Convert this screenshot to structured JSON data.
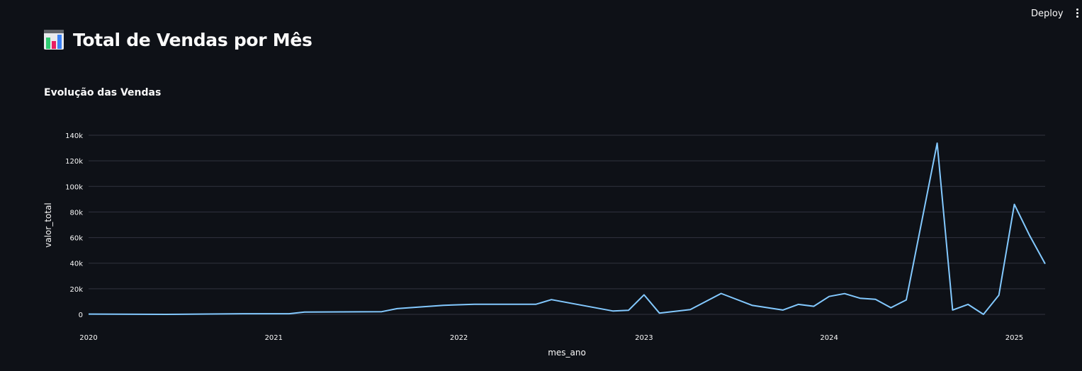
{
  "header": {
    "deploy_label": "Deploy"
  },
  "page": {
    "title": "Total de Vendas por Mês",
    "title_icon": "bar-chart-icon",
    "subheader": "Evolução das Vendas"
  },
  "colors": {
    "background": "#0e1117",
    "line": "#83c9ff",
    "grid": "#31333f",
    "text": "#fafafa"
  },
  "chart_data": {
    "type": "line",
    "title": "",
    "xlabel": "mes_ano",
    "ylabel": "valor_total",
    "xlim": [
      "2020-01",
      "2025-03"
    ],
    "ylim": [
      0,
      140000
    ],
    "x_ticks": [
      "2020",
      "2021",
      "2022",
      "2023",
      "2024",
      "2025"
    ],
    "y_ticks": [
      {
        "value": 0,
        "label": "0"
      },
      {
        "value": 20000,
        "label": "20k"
      },
      {
        "value": 40000,
        "label": "40k"
      },
      {
        "value": 60000,
        "label": "60k"
      },
      {
        "value": 80000,
        "label": "80k"
      },
      {
        "value": 100000,
        "label": "100k"
      },
      {
        "value": 120000,
        "label": "120k"
      },
      {
        "value": 140000,
        "label": "140k"
      }
    ],
    "grid": true,
    "series": [
      {
        "x": [
          "2020-01",
          "2020-06",
          "2020-11",
          "2021-02",
          "2021-03",
          "2021-08",
          "2021-09",
          "2021-12",
          "2022-02",
          "2022-06",
          "2022-07",
          "2022-11",
          "2022-12",
          "2023-01",
          "2023-02",
          "2023-04",
          "2023-06",
          "2023-08",
          "2023-10",
          "2023-11",
          "2023-12",
          "2024-01",
          "2024-02",
          "2024-03",
          "2024-04",
          "2024-05",
          "2024-06",
          "2024-08",
          "2024-09",
          "2024-10",
          "2024-11",
          "2024-12",
          "2025-01",
          "2025-02",
          "2025-03"
        ],
        "values": [
          200,
          0,
          500,
          500,
          1800,
          2100,
          4500,
          7100,
          7900,
          7900,
          11500,
          2600,
          3200,
          15300,
          1000,
          3700,
          16300,
          7100,
          3400,
          7800,
          6300,
          14000,
          16200,
          12600,
          11800,
          5200,
          11300,
          133800,
          3400,
          7800,
          0,
          15000,
          86000,
          61500,
          39500
        ]
      }
    ]
  }
}
